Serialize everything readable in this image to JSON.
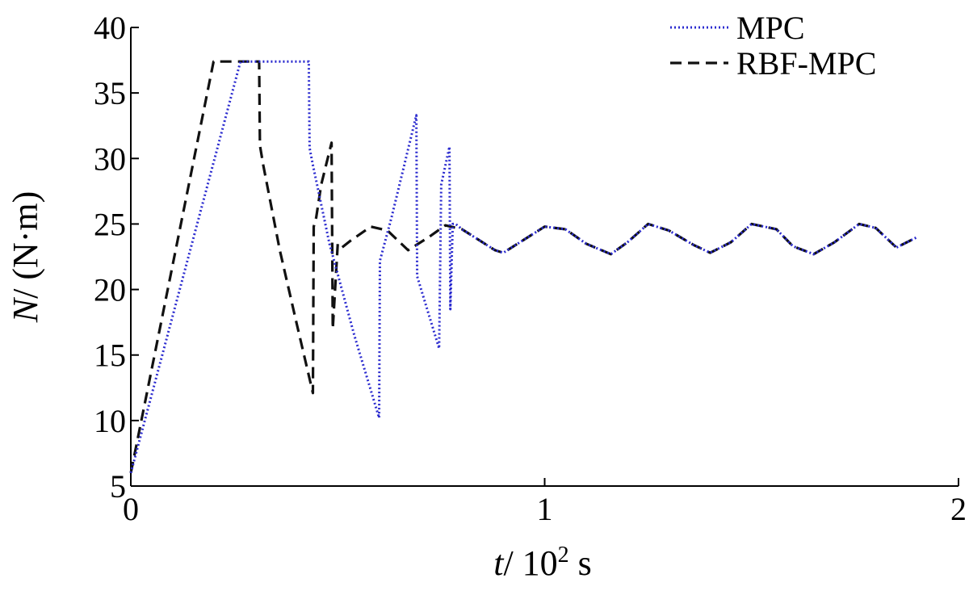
{
  "chart_data": {
    "type": "line",
    "xlabel_var": "t",
    "xlabel_unit": "/ 10",
    "xlabel_exp": "2",
    "xlabel_tail": " s",
    "ylabel_var": "N",
    "ylabel_unit": "/ (N·m)",
    "xlim": [
      0,
      2
    ],
    "ylim": [
      5,
      40
    ],
    "xticks": [
      0,
      1,
      2
    ],
    "xtick_labels": [
      "0",
      "1",
      "2"
    ],
    "yticks": [
      5,
      10,
      15,
      20,
      25,
      30,
      35,
      40
    ],
    "ytick_labels": [
      "5",
      "10",
      "15",
      "20",
      "25",
      "30",
      "35",
      "40"
    ],
    "grid": false,
    "legend_position": "top-right",
    "series": [
      {
        "name": "MPC",
        "color": "#2b2bcf",
        "style": "dotted",
        "x": [
          0,
          0.265,
          0.43,
          0.432,
          0.44,
          0.48,
          0.54,
          0.6,
          0.602,
          0.63,
          0.69,
          0.692,
          0.745,
          0.75,
          0.77,
          0.772,
          0.778,
          0.785,
          0.8,
          0.84,
          0.88,
          0.9,
          0.94,
          1.0,
          1.05,
          1.1,
          1.16,
          1.2,
          1.25,
          1.3,
          1.36,
          1.4,
          1.45,
          1.5,
          1.56,
          1.6,
          1.65,
          1.7,
          1.76,
          1.8,
          1.85,
          1.9
        ],
        "y": [
          6,
          37.4,
          37.4,
          30.8,
          29.5,
          23.5,
          16.5,
          10.2,
          22.2,
          25.5,
          33.3,
          21,
          15.5,
          28,
          30.9,
          18.5,
          25,
          25,
          24.6,
          23.8,
          23,
          22.8,
          23.6,
          24.8,
          24.6,
          23.5,
          22.7,
          23.6,
          25,
          24.5,
          23.4,
          22.8,
          23.6,
          25,
          24.6,
          23.3,
          22.7,
          23.6,
          25,
          24.7,
          23.2,
          24
        ]
      },
      {
        "name": "RBF-MPC",
        "color": "#111111",
        "style": "dashed",
        "x": [
          0,
          0.2,
          0.31,
          0.312,
          0.32,
          0.36,
          0.4,
          0.44,
          0.442,
          0.448,
          0.46,
          0.485,
          0.488,
          0.5,
          0.51,
          0.53,
          0.58,
          0.62,
          0.67,
          0.72,
          0.76,
          0.8,
          0.84,
          0.88,
          0.9,
          0.94,
          1.0,
          1.05,
          1.1,
          1.16,
          1.2,
          1.25,
          1.3,
          1.36,
          1.4,
          1.45,
          1.5,
          1.56,
          1.6,
          1.65,
          1.7,
          1.76,
          1.8,
          1.85,
          1.9
        ],
        "y": [
          6,
          37.4,
          37.4,
          31,
          29.5,
          23,
          17.5,
          12.1,
          24.8,
          25.5,
          28,
          31.2,
          17,
          23.5,
          23.2,
          23.7,
          24.8,
          24.5,
          23,
          24,
          24.9,
          24.6,
          23.8,
          23,
          22.8,
          23.6,
          24.8,
          24.6,
          23.5,
          22.7,
          23.6,
          25,
          24.5,
          23.4,
          22.8,
          23.6,
          25,
          24.6,
          23.3,
          22.7,
          23.6,
          25,
          24.7,
          23.2,
          24
        ]
      }
    ]
  }
}
